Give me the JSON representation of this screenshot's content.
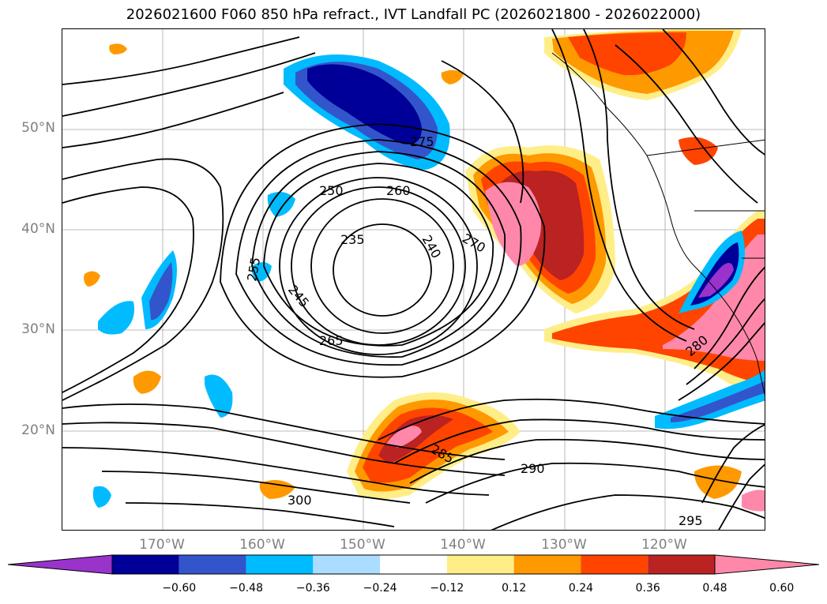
{
  "title": "2026021600 F060 850 hPa refract., IVT Landfall PC (2026021800 - 2026022000)",
  "colors": {
    "bins": [
      "#9933cc",
      "#000099",
      "#3355cc",
      "#00bbff",
      "#aaddff",
      "#ffffff",
      "#ffee88",
      "#ff9900",
      "#ff4400",
      "#bb2222",
      "#ff88aa"
    ],
    "contour": "#000000",
    "grid": "#808080"
  },
  "map": {
    "lat_ticks": [
      "50°N",
      "40°N",
      "30°N",
      "20°N"
    ],
    "lon_ticks": [
      "170°W",
      "160°W",
      "150°W",
      "140°W",
      "130°W",
      "120°W"
    ]
  },
  "contour_labels": [
    "235",
    "240",
    "245",
    "250",
    "255",
    "260",
    "265",
    "270",
    "275",
    "280",
    "285",
    "290",
    "295",
    "300"
  ],
  "colorbar": {
    "ticks": [
      "−0.60",
      "−0.48",
      "−0.36",
      "−0.24",
      "−0.12",
      "0.12",
      "0.24",
      "0.36",
      "0.48",
      "0.60"
    ],
    "extend": "both"
  }
}
